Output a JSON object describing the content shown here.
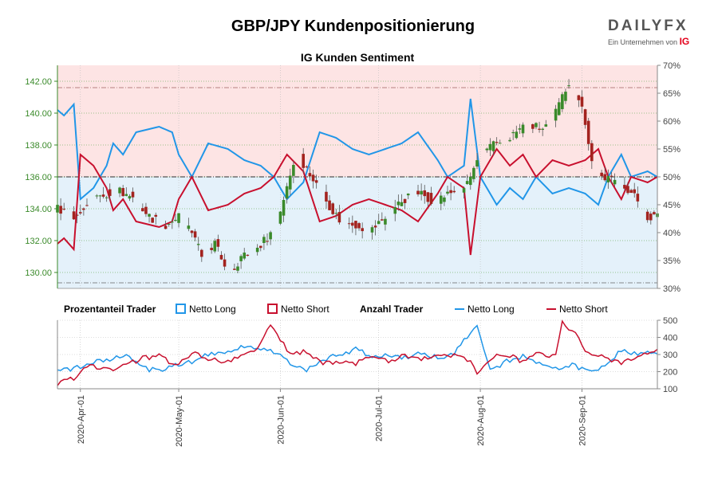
{
  "header": {
    "title": "GBP/JPY Kundenpositionierung",
    "subtitle": "IG Kunden Sentiment",
    "logo_text": "DAILYFX",
    "logo_tagline": "Ein Unternehmen von",
    "logo_brand": "IG"
  },
  "legend": {
    "pct_heading": "Prozentanteil Trader",
    "pct_long": "Netto Long",
    "pct_short": "Netto Short",
    "count_heading": "Anzahl Trader",
    "count_long": "Netto Long",
    "count_short": "Netto Short"
  },
  "colors": {
    "long": "#2196e8",
    "short": "#c8102e",
    "candle_up": "#3a8a2a",
    "candle_down": "#a3231f",
    "zone_short": "#fde4e4",
    "zone_long": "#e4f1fa",
    "price_axis": "#3a8a2a"
  },
  "chart_data": [
    {
      "type": "candlestick",
      "name": "price",
      "y_label": "",
      "ylim": [
        129.0,
        143.0
      ],
      "y_ticks": [
        "130.00",
        "132.00",
        "134.00",
        "136.00",
        "138.00",
        "140.00",
        "142.00"
      ],
      "x_ticks": [
        "2020-Apr-01",
        "2020-May-01",
        "2020-Jun-01",
        "2020-Jul-01",
        "2020-Aug-01",
        "2020-Sep-01"
      ],
      "x_range": [
        "2020-03-25",
        "2020-09-24"
      ],
      "control_points": [
        [
          "2020-03-25",
          134.0
        ],
        [
          "2020-03-31",
          133.5
        ],
        [
          "2020-04-03",
          134.3
        ],
        [
          "2020-04-07",
          134.8
        ],
        [
          "2020-04-12",
          135.2
        ],
        [
          "2020-04-17",
          134.7
        ],
        [
          "2020-04-22",
          133.5
        ],
        [
          "2020-04-27",
          133.0
        ],
        [
          "2020-05-01",
          133.5
        ],
        [
          "2020-05-05",
          132.5
        ],
        [
          "2020-05-08",
          131.0
        ],
        [
          "2020-05-12",
          131.8
        ],
        [
          "2020-05-15",
          130.5
        ],
        [
          "2020-05-17",
          130.0
        ],
        [
          "2020-05-20",
          131.0
        ],
        [
          "2020-05-24",
          131.3
        ],
        [
          "2020-05-27",
          132.0
        ],
        [
          "2020-05-31",
          133.0
        ],
        [
          "2020-06-03",
          135.5
        ],
        [
          "2020-06-06",
          137.5
        ],
        [
          "2020-06-09",
          136.5
        ],
        [
          "2020-06-12",
          135.5
        ],
        [
          "2020-06-15",
          134.5
        ],
        [
          "2020-06-20",
          133.0
        ],
        [
          "2020-06-25",
          133.0
        ],
        [
          "2020-06-28",
          132.5
        ],
        [
          "2020-07-03",
          133.5
        ],
        [
          "2020-07-08",
          134.5
        ],
        [
          "2020-07-13",
          135.0
        ],
        [
          "2020-07-18",
          134.5
        ],
        [
          "2020-07-23",
          135.0
        ],
        [
          "2020-07-28",
          135.5
        ],
        [
          "2020-07-31",
          137.0
        ],
        [
          "2020-08-05",
          138.0
        ],
        [
          "2020-08-10",
          138.5
        ],
        [
          "2020-08-15",
          139.3
        ],
        [
          "2020-08-20",
          139.0
        ],
        [
          "2020-08-23",
          139.5
        ],
        [
          "2020-08-26",
          141.0
        ],
        [
          "2020-08-28",
          142.0
        ],
        [
          "2020-08-31",
          141.0
        ],
        [
          "2020-09-02",
          139.5
        ],
        [
          "2020-09-04",
          137.0
        ],
        [
          "2020-09-07",
          136.0
        ],
        [
          "2020-09-10",
          135.8
        ],
        [
          "2020-09-14",
          135.5
        ],
        [
          "2020-09-18",
          134.5
        ],
        [
          "2020-09-21",
          133.5
        ],
        [
          "2020-09-24",
          133.5
        ]
      ]
    },
    {
      "type": "line",
      "name": "percentage",
      "y_label": "",
      "ylim": [
        30,
        70
      ],
      "y_ticks": [
        "30%",
        "35%",
        "40%",
        "45%",
        "50%",
        "55%",
        "60%",
        "65%",
        "70%"
      ],
      "series": [
        {
          "name": "Netto Long",
          "points": [
            [
              "2020-03-25",
              62
            ],
            [
              "2020-03-27",
              61
            ],
            [
              "2020-03-30",
              63
            ],
            [
              "2020-04-01",
              46
            ],
            [
              "2020-04-05",
              48
            ],
            [
              "2020-04-09",
              52
            ],
            [
              "2020-04-11",
              56
            ],
            [
              "2020-04-14",
              54
            ],
            [
              "2020-04-18",
              58
            ],
            [
              "2020-04-25",
              59
            ],
            [
              "2020-04-29",
              58
            ],
            [
              "2020-05-01",
              54
            ],
            [
              "2020-05-05",
              50
            ],
            [
              "2020-05-10",
              56
            ],
            [
              "2020-05-16",
              55
            ],
            [
              "2020-05-21",
              53
            ],
            [
              "2020-05-26",
              52
            ],
            [
              "2020-05-30",
              50
            ],
            [
              "2020-06-03",
              46
            ],
            [
              "2020-06-08",
              49
            ],
            [
              "2020-06-13",
              58
            ],
            [
              "2020-06-18",
              57
            ],
            [
              "2020-06-23",
              55
            ],
            [
              "2020-06-28",
              54
            ],
            [
              "2020-07-03",
              55
            ],
            [
              "2020-07-08",
              56
            ],
            [
              "2020-07-13",
              58
            ],
            [
              "2020-07-19",
              53
            ],
            [
              "2020-07-22",
              50
            ],
            [
              "2020-07-27",
              52
            ],
            [
              "2020-07-29",
              64
            ],
            [
              "2020-08-01",
              50
            ],
            [
              "2020-08-06",
              45
            ],
            [
              "2020-08-10",
              48
            ],
            [
              "2020-08-14",
              46
            ],
            [
              "2020-08-18",
              50
            ],
            [
              "2020-08-23",
              47
            ],
            [
              "2020-08-28",
              48
            ],
            [
              "2020-09-02",
              47
            ],
            [
              "2020-09-06",
              45
            ],
            [
              "2020-09-09",
              50
            ],
            [
              "2020-09-13",
              54
            ],
            [
              "2020-09-16",
              50
            ],
            [
              "2020-09-21",
              51
            ],
            [
              "2020-09-24",
              50
            ]
          ]
        },
        {
          "name": "Netto Short",
          "points": [
            [
              "2020-03-25",
              38
            ],
            [
              "2020-03-27",
              39
            ],
            [
              "2020-03-30",
              37
            ],
            [
              "2020-04-01",
              54
            ],
            [
              "2020-04-05",
              52
            ],
            [
              "2020-04-09",
              48
            ],
            [
              "2020-04-11",
              44
            ],
            [
              "2020-04-14",
              46
            ],
            [
              "2020-04-18",
              42
            ],
            [
              "2020-04-25",
              41
            ],
            [
              "2020-04-29",
              42
            ],
            [
              "2020-05-01",
              46
            ],
            [
              "2020-05-05",
              50
            ],
            [
              "2020-05-10",
              44
            ],
            [
              "2020-05-16",
              45
            ],
            [
              "2020-05-21",
              47
            ],
            [
              "2020-05-26",
              48
            ],
            [
              "2020-05-30",
              50
            ],
            [
              "2020-06-03",
              54
            ],
            [
              "2020-06-08",
              51
            ],
            [
              "2020-06-13",
              42
            ],
            [
              "2020-06-18",
              43
            ],
            [
              "2020-06-23",
              45
            ],
            [
              "2020-06-28",
              46
            ],
            [
              "2020-07-03",
              45
            ],
            [
              "2020-07-08",
              44
            ],
            [
              "2020-07-13",
              42
            ],
            [
              "2020-07-19",
              47
            ],
            [
              "2020-07-22",
              50
            ],
            [
              "2020-07-27",
              48
            ],
            [
              "2020-07-29",
              36
            ],
            [
              "2020-08-01",
              50
            ],
            [
              "2020-08-06",
              55
            ],
            [
              "2020-08-10",
              52
            ],
            [
              "2020-08-14",
              54
            ],
            [
              "2020-08-18",
              50
            ],
            [
              "2020-08-23",
              53
            ],
            [
              "2020-08-28",
              52
            ],
            [
              "2020-09-02",
              53
            ],
            [
              "2020-09-06",
              55
            ],
            [
              "2020-09-09",
              50
            ],
            [
              "2020-09-13",
              46
            ],
            [
              "2020-09-16",
              50
            ],
            [
              "2020-09-21",
              49
            ],
            [
              "2020-09-24",
              50
            ]
          ]
        }
      ]
    },
    {
      "type": "line",
      "name": "count",
      "y_label": "",
      "ylim": [
        100,
        500
      ],
      "y_ticks": [
        "100",
        "200",
        "300",
        "400",
        "500"
      ],
      "series": [
        {
          "name": "Netto Long",
          "points": [
            [
              "2020-03-25",
              200
            ],
            [
              "2020-03-30",
              215
            ],
            [
              "2020-04-03",
              245
            ],
            [
              "2020-04-10",
              270
            ],
            [
              "2020-04-15",
              290
            ],
            [
              "2020-04-20",
              220
            ],
            [
              "2020-04-25",
              205
            ],
            [
              "2020-04-30",
              240
            ],
            [
              "2020-05-05",
              260
            ],
            [
              "2020-05-10",
              300
            ],
            [
              "2020-05-15",
              320
            ],
            [
              "2020-05-20",
              345
            ],
            [
              "2020-05-25",
              330
            ],
            [
              "2020-05-30",
              315
            ],
            [
              "2020-06-04",
              250
            ],
            [
              "2020-06-09",
              210
            ],
            [
              "2020-06-14",
              265
            ],
            [
              "2020-06-19",
              300
            ],
            [
              "2020-06-24",
              330
            ],
            [
              "2020-06-29",
              290
            ],
            [
              "2020-07-04",
              300
            ],
            [
              "2020-07-09",
              280
            ],
            [
              "2020-07-14",
              310
            ],
            [
              "2020-07-19",
              280
            ],
            [
              "2020-07-24",
              300
            ],
            [
              "2020-07-29",
              430
            ],
            [
              "2020-07-31",
              480
            ],
            [
              "2020-08-04",
              200
            ],
            [
              "2020-08-09",
              260
            ],
            [
              "2020-08-14",
              290
            ],
            [
              "2020-08-19",
              245
            ],
            [
              "2020-08-24",
              215
            ],
            [
              "2020-08-29",
              240
            ],
            [
              "2020-09-03",
              200
            ],
            [
              "2020-09-08",
              225
            ],
            [
              "2020-09-13",
              330
            ],
            [
              "2020-09-18",
              305
            ],
            [
              "2020-09-24",
              310
            ]
          ]
        },
        {
          "name": "Netto Short",
          "points": [
            [
              "2020-03-25",
              130
            ],
            [
              "2020-03-30",
              160
            ],
            [
              "2020-04-03",
              240
            ],
            [
              "2020-04-10",
              215
            ],
            [
              "2020-04-15",
              240
            ],
            [
              "2020-04-20",
              280
            ],
            [
              "2020-04-25",
              290
            ],
            [
              "2020-04-30",
              240
            ],
            [
              "2020-05-05",
              310
            ],
            [
              "2020-05-10",
              280
            ],
            [
              "2020-05-15",
              250
            ],
            [
              "2020-05-20",
              300
            ],
            [
              "2020-05-25",
              340
            ],
            [
              "2020-05-29",
              470
            ],
            [
              "2020-06-04",
              300
            ],
            [
              "2020-06-09",
              320
            ],
            [
              "2020-06-14",
              250
            ],
            [
              "2020-06-19",
              260
            ],
            [
              "2020-06-24",
              250
            ],
            [
              "2020-06-29",
              280
            ],
            [
              "2020-07-04",
              260
            ],
            [
              "2020-07-09",
              300
            ],
            [
              "2020-07-14",
              270
            ],
            [
              "2020-07-19",
              300
            ],
            [
              "2020-07-24",
              290
            ],
            [
              "2020-07-29",
              260
            ],
            [
              "2020-07-31",
              200
            ],
            [
              "2020-08-04",
              280
            ],
            [
              "2020-08-09",
              300
            ],
            [
              "2020-08-14",
              260
            ],
            [
              "2020-08-19",
              310
            ],
            [
              "2020-08-24",
              290
            ],
            [
              "2020-08-26",
              490
            ],
            [
              "2020-08-30",
              420
            ],
            [
              "2020-09-03",
              300
            ],
            [
              "2020-09-08",
              290
            ],
            [
              "2020-09-13",
              240
            ],
            [
              "2020-09-18",
              290
            ],
            [
              "2020-09-24",
              320
            ]
          ]
        }
      ]
    }
  ]
}
